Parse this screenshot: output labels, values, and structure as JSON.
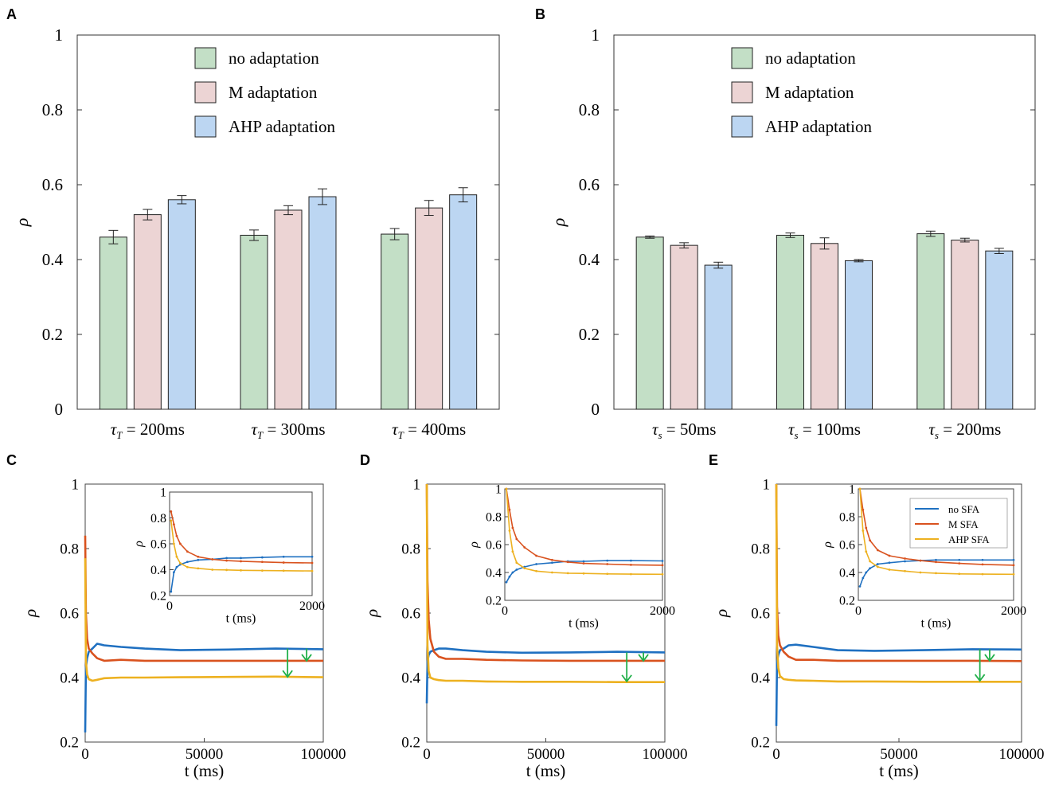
{
  "panels": {
    "A": {
      "letter": "A"
    },
    "B": {
      "letter": "B"
    },
    "C": {
      "letter": "C"
    },
    "D": {
      "letter": "D"
    },
    "E": {
      "letter": "E"
    }
  },
  "colors": {
    "green_fill": "#c3dfc6",
    "pink_fill": "#ecd4d4",
    "blue_fill": "#bcd6f2",
    "blue_line": "#1f70c1",
    "red_line": "#d9521e",
    "yellow_line": "#edb120",
    "arrow": "#22b04b"
  },
  "chart_data": [
    {
      "id": "A",
      "type": "bar",
      "title": "",
      "ylabel": "ρ",
      "ylim": [
        0,
        1
      ],
      "yticks": [
        "0",
        "0.2",
        "0.4",
        "0.6",
        "0.8",
        "1"
      ],
      "categories": [
        "τ_T = 200ms",
        "τ_T = 300ms",
        "τ_T = 400ms"
      ],
      "category_parts": [
        {
          "sym": "τ",
          "sub": "T",
          "rest": " = 200ms"
        },
        {
          "sym": "τ",
          "sub": "T",
          "rest": " = 300ms"
        },
        {
          "sym": "τ",
          "sub": "T",
          "rest": " = 400ms"
        }
      ],
      "series": [
        {
          "name": "no adaptation",
          "values": [
            0.46,
            0.465,
            0.468
          ],
          "errors": [
            0.018,
            0.014,
            0.015
          ]
        },
        {
          "name": "M adaptation",
          "values": [
            0.52,
            0.532,
            0.538
          ],
          "errors": [
            0.014,
            0.012,
            0.02
          ]
        },
        {
          "name": "AHP adaptation",
          "values": [
            0.56,
            0.568,
            0.573
          ],
          "errors": [
            0.011,
            0.021,
            0.019
          ]
        }
      ],
      "legend": "top-center"
    },
    {
      "id": "B",
      "type": "bar",
      "title": "",
      "ylabel": "ρ",
      "ylim": [
        0,
        1
      ],
      "yticks": [
        "0",
        "0.2",
        "0.4",
        "0.6",
        "0.8",
        "1"
      ],
      "categories": [
        "τ_s = 50ms",
        "τ_s = 100ms",
        "τ_s = 200ms"
      ],
      "category_parts": [
        {
          "sym": "τ",
          "sub": "s",
          "rest": " = 50ms"
        },
        {
          "sym": "τ",
          "sub": "s",
          "rest": " = 100ms"
        },
        {
          "sym": "τ",
          "sub": "s",
          "rest": " = 200ms"
        }
      ],
      "series": [
        {
          "name": "no adaptation",
          "values": [
            0.46,
            0.465,
            0.469
          ],
          "errors": [
            0.003,
            0.006,
            0.007
          ]
        },
        {
          "name": "M adaptation",
          "values": [
            0.438,
            0.443,
            0.452
          ],
          "errors": [
            0.007,
            0.015,
            0.005
          ]
        },
        {
          "name": "AHP adaptation",
          "values": [
            0.385,
            0.397,
            0.423
          ],
          "errors": [
            0.008,
            0.003,
            0.007
          ]
        }
      ],
      "legend": "top-center"
    },
    {
      "id": "C",
      "type": "line",
      "xlabel": "t (ms)",
      "ylabel": "ρ",
      "xlim": [
        0,
        100000
      ],
      "ylim": [
        0.2,
        1
      ],
      "xticks": [
        "0",
        "50000",
        "100000"
      ],
      "yticks": [
        "0.2",
        "0.4",
        "0.6",
        "0.8",
        "1"
      ],
      "series": [
        {
          "name": "no SFA",
          "x": [
            0,
            300,
            800,
            1500,
            3000,
            5000,
            8000,
            15000,
            25000,
            40000,
            60000,
            80000,
            100000
          ],
          "values": [
            0.23,
            0.43,
            0.46,
            0.48,
            0.49,
            0.505,
            0.5,
            0.495,
            0.49,
            0.485,
            0.487,
            0.49,
            0.488
          ]
        },
        {
          "name": "M SFA",
          "x": [
            0,
            300,
            800,
            1500,
            3000,
            5000,
            8000,
            15000,
            25000,
            40000,
            60000,
            80000,
            100000
          ],
          "values": [
            0.84,
            0.6,
            0.52,
            0.49,
            0.475,
            0.46,
            0.452,
            0.455,
            0.452,
            0.452,
            0.452,
            0.452,
            0.452
          ]
        },
        {
          "name": "AHP SFA",
          "x": [
            0,
            300,
            800,
            1500,
            3000,
            5000,
            8000,
            15000,
            25000,
            40000,
            60000,
            80000,
            100000
          ],
          "values": [
            0.77,
            0.45,
            0.41,
            0.395,
            0.39,
            0.393,
            0.398,
            0.4,
            0.4,
            0.401,
            0.402,
            0.403,
            0.401
          ]
        }
      ],
      "inset": {
        "xlim": [
          0,
          2000
        ],
        "ylim": [
          0.2,
          1
        ],
        "xticks": [
          "0",
          "2000"
        ],
        "yticks": [
          "0.2",
          "0.4",
          "0.6",
          "0.8",
          "1"
        ],
        "xlabel": "t (ms)",
        "ylabel": "ρ",
        "series": [
          {
            "name": "no SFA",
            "x": [
              20,
              60,
              100,
              150,
              250,
              400,
              600,
              800,
              1000,
              1300,
              1600,
              2000
            ],
            "values": [
              0.23,
              0.38,
              0.42,
              0.44,
              0.46,
              0.475,
              0.48,
              0.49,
              0.49,
              0.495,
              0.5,
              0.5
            ]
          },
          {
            "name": "M SFA",
            "x": [
              20,
              60,
              100,
              150,
              250,
              400,
              600,
              800,
              1000,
              1300,
              1600,
              2000
            ],
            "values": [
              0.85,
              0.75,
              0.66,
              0.6,
              0.54,
              0.5,
              0.48,
              0.47,
              0.465,
              0.46,
              0.455,
              0.452
            ]
          },
          {
            "name": "AHP SFA",
            "x": [
              20,
              60,
              100,
              150,
              250,
              400,
              600,
              800,
              1000,
              1300,
              1600,
              2000
            ],
            "values": [
              0.78,
              0.6,
              0.5,
              0.45,
              0.42,
              0.41,
              0.4,
              0.398,
              0.395,
              0.393,
              0.392,
              0.39
            ]
          }
        ]
      },
      "arrows": [
        {
          "x": 85000,
          "from": 0.49,
          "to": 0.402
        },
        {
          "x": 93000,
          "from": 0.49,
          "to": 0.452
        }
      ]
    },
    {
      "id": "D",
      "type": "line",
      "xlabel": "t (ms)",
      "ylabel": "ρ",
      "xlim": [
        0,
        100000
      ],
      "ylim": [
        0.2,
        1
      ],
      "xticks": [
        "0",
        "50000",
        "100000"
      ],
      "yticks": [
        "0.2",
        "0.4",
        "0.6",
        "0.8",
        "1"
      ],
      "series": [
        {
          "name": "no SFA",
          "x": [
            0,
            300,
            800,
            1500,
            3000,
            5000,
            8000,
            15000,
            25000,
            40000,
            60000,
            80000,
            100000
          ],
          "values": [
            0.32,
            0.45,
            0.47,
            0.48,
            0.485,
            0.49,
            0.49,
            0.485,
            0.48,
            0.477,
            0.478,
            0.48,
            0.478
          ]
        },
        {
          "name": "M SFA",
          "x": [
            0,
            300,
            800,
            1500,
            3000,
            5000,
            8000,
            15000,
            25000,
            40000,
            60000,
            80000,
            100000
          ],
          "values": [
            1.0,
            0.7,
            0.58,
            0.52,
            0.48,
            0.465,
            0.458,
            0.458,
            0.455,
            0.453,
            0.452,
            0.452,
            0.452
          ]
        },
        {
          "name": "AHP SFA",
          "x": [
            0,
            300,
            800,
            1500,
            3000,
            5000,
            8000,
            15000,
            25000,
            40000,
            60000,
            80000,
            100000
          ],
          "values": [
            1.0,
            0.5,
            0.42,
            0.4,
            0.395,
            0.392,
            0.39,
            0.39,
            0.388,
            0.387,
            0.387,
            0.386,
            0.386
          ]
        }
      ],
      "inset": {
        "xlim": [
          0,
          2000
        ],
        "ylim": [
          0.2,
          1
        ],
        "xticks": [
          "0",
          "2000"
        ],
        "yticks": [
          "0.2",
          "0.4",
          "0.6",
          "0.8",
          "1"
        ],
        "xlabel": "t (ms)",
        "ylabel": "ρ",
        "series": [
          {
            "name": "no SFA",
            "x": [
              20,
              60,
              100,
              150,
              250,
              400,
              600,
              800,
              1000,
              1300,
              1600,
              2000
            ],
            "values": [
              0.33,
              0.37,
              0.4,
              0.42,
              0.44,
              0.46,
              0.47,
              0.48,
              0.48,
              0.485,
              0.485,
              0.483
            ]
          },
          {
            "name": "M SFA",
            "x": [
              20,
              60,
              100,
              150,
              250,
              400,
              600,
              800,
              1000,
              1300,
              1600,
              2000
            ],
            "values": [
              1.0,
              0.85,
              0.72,
              0.64,
              0.58,
              0.52,
              0.49,
              0.475,
              0.465,
              0.46,
              0.455,
              0.452
            ]
          },
          {
            "name": "AHP SFA",
            "x": [
              20,
              60,
              100,
              150,
              250,
              400,
              600,
              800,
              1000,
              1300,
              1600,
              2000
            ],
            "values": [
              1.0,
              0.7,
              0.55,
              0.47,
              0.43,
              0.41,
              0.4,
              0.395,
              0.393,
              0.39,
              0.388,
              0.387
            ]
          }
        ]
      },
      "arrows": [
        {
          "x": 84000,
          "from": 0.478,
          "to": 0.388
        },
        {
          "x": 91000,
          "from": 0.478,
          "to": 0.452
        }
      ]
    },
    {
      "id": "E",
      "type": "line",
      "xlabel": "t (ms)",
      "ylabel": "ρ",
      "xlim": [
        0,
        100000
      ],
      "ylim": [
        0.2,
        1
      ],
      "xticks": [
        "0",
        "50000",
        "100000"
      ],
      "yticks": [
        "0.2",
        "0.4",
        "0.6",
        "0.8",
        "1"
      ],
      "series": [
        {
          "name": "no SFA",
          "x": [
            0,
            300,
            800,
            1500,
            3000,
            5000,
            8000,
            15000,
            25000,
            40000,
            60000,
            80000,
            100000
          ],
          "values": [
            0.25,
            0.45,
            0.47,
            0.485,
            0.49,
            0.5,
            0.502,
            0.495,
            0.485,
            0.483,
            0.485,
            0.488,
            0.487
          ]
        },
        {
          "name": "M SFA",
          "x": [
            0,
            300,
            800,
            1500,
            3000,
            5000,
            8000,
            15000,
            25000,
            40000,
            60000,
            80000,
            100000
          ],
          "values": [
            1.0,
            0.62,
            0.53,
            0.5,
            0.48,
            0.465,
            0.455,
            0.455,
            0.452,
            0.452,
            0.452,
            0.452,
            0.451
          ]
        },
        {
          "name": "AHP SFA",
          "x": [
            0,
            300,
            800,
            1500,
            3000,
            5000,
            8000,
            15000,
            25000,
            40000,
            60000,
            80000,
            100000
          ],
          "values": [
            1.0,
            0.5,
            0.43,
            0.405,
            0.395,
            0.393,
            0.391,
            0.39,
            0.388,
            0.388,
            0.387,
            0.387,
            0.387
          ]
        }
      ],
      "inset": {
        "xlim": [
          0,
          2000
        ],
        "ylim": [
          0.2,
          1
        ],
        "xticks": [
          "0",
          "2000"
        ],
        "yticks": [
          "0.2",
          "0.4",
          "0.6",
          "0.8",
          "1"
        ],
        "xlabel": "t (ms)",
        "ylabel": "ρ",
        "legend": [
          "no SFA",
          "M SFA",
          "AHP SFA"
        ],
        "series": [
          {
            "name": "no SFA",
            "x": [
              20,
              60,
              100,
              150,
              250,
              400,
              600,
              800,
              1000,
              1300,
              1600,
              2000
            ],
            "values": [
              0.3,
              0.36,
              0.4,
              0.43,
              0.46,
              0.47,
              0.48,
              0.485,
              0.49,
              0.49,
              0.49,
              0.49
            ]
          },
          {
            "name": "M SFA",
            "x": [
              20,
              60,
              100,
              150,
              250,
              400,
              600,
              800,
              1000,
              1300,
              1600,
              2000
            ],
            "values": [
              1.0,
              0.85,
              0.72,
              0.63,
              0.56,
              0.52,
              0.5,
              0.485,
              0.475,
              0.465,
              0.458,
              0.452
            ]
          },
          {
            "name": "AHP SFA",
            "x": [
              20,
              60,
              100,
              150,
              250,
              400,
              600,
              800,
              1000,
              1300,
              1600,
              2000
            ],
            "values": [
              1.0,
              0.7,
              0.55,
              0.48,
              0.44,
              0.42,
              0.41,
              0.4,
              0.395,
              0.39,
              0.388,
              0.387
            ]
          }
        ]
      },
      "arrows": [
        {
          "x": 83000,
          "from": 0.488,
          "to": 0.39
        },
        {
          "x": 87000,
          "from": 0.488,
          "to": 0.452
        }
      ]
    }
  ]
}
